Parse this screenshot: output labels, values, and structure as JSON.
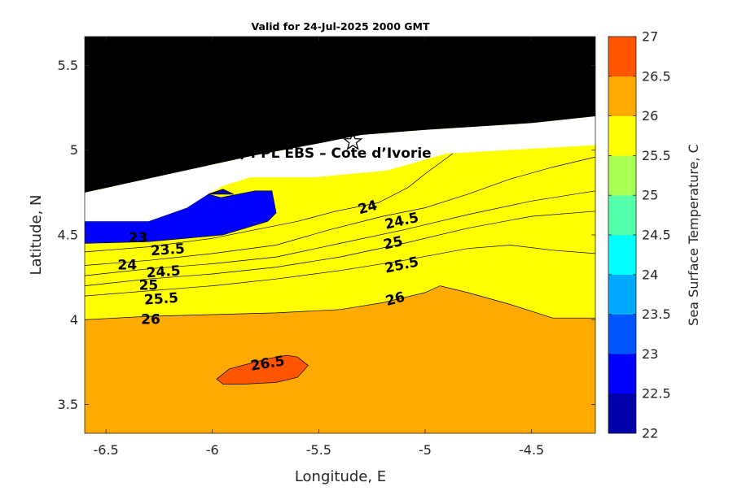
{
  "chart_data": {
    "type": "contourf",
    "title": "Valid for 24-Jul-2025 2000 GMT",
    "xlabel": "Longitude, E",
    "ylabel": "Latitude, N",
    "xlim": [
      -6.6,
      -4.2
    ],
    "ylim": [
      3.33,
      5.67
    ],
    "xticks": [
      -6.5,
      -6,
      -5.5,
      -5,
      -4.5
    ],
    "xtick_labels": [
      "-6.5",
      "-6",
      "-5.5",
      "-5",
      "-4.5"
    ],
    "yticks": [
      3.5,
      4,
      4.5,
      5,
      5.5
    ],
    "ytick_labels": [
      "3.5",
      "4",
      "4.5",
      "5",
      "5.5"
    ],
    "site_label": "A (ONHYM) PPL EBS  – Cote d’Ivorie",
    "site_marker": {
      "lon": -5.34,
      "lat": 5.05,
      "symbol": "star"
    },
    "colorbar": {
      "label": "Sea Surface Temperature, C",
      "levels": [
        22,
        22.5,
        23,
        23.5,
        24,
        24.5,
        25,
        25.5,
        26,
        26.5,
        27
      ],
      "tick_labels": [
        "22",
        "22.5",
        "23",
        "23.5",
        "24",
        "24.5",
        "25",
        "25.5",
        "26",
        "26.5",
        "27"
      ],
      "colors": [
        "#0000aa",
        "#0000ff",
        "#0055ff",
        "#00aaff",
        "#00ffff",
        "#55ffaa",
        "#aaff55",
        "#ffff00",
        "#ffaa00",
        "#ff5500"
      ]
    },
    "colors": {
      "land": "#000000",
      "nodata": "#ffffff"
    },
    "land_boundary": [
      [
        -6.6,
        4.75
      ],
      [
        -6.2,
        4.86
      ],
      [
        -5.8,
        4.97
      ],
      [
        -5.5,
        5.04
      ],
      [
        -5.3,
        5.09
      ],
      [
        -5.0,
        5.12
      ],
      [
        -4.5,
        5.16
      ],
      [
        -4.2,
        5.2
      ]
    ],
    "sea_top": [
      [
        -6.6,
        4.58
      ],
      [
        -6.3,
        4.58
      ],
      [
        -6.12,
        4.66
      ],
      [
        -6.02,
        4.74
      ],
      [
        -5.95,
        4.79
      ],
      [
        -5.82,
        4.84
      ],
      [
        -5.52,
        4.84
      ],
      [
        -5.18,
        4.88
      ],
      [
        -4.9,
        4.98
      ],
      [
        -4.2,
        5.03
      ]
    ],
    "contours": [
      {
        "level": 23.5,
        "points": [
          [
            -6.6,
            4.4
          ],
          [
            -6.3,
            4.43
          ],
          [
            -6.0,
            4.48
          ],
          [
            -5.8,
            4.53
          ],
          [
            -5.6,
            4.58
          ],
          [
            -5.42,
            4.64
          ],
          [
            -5.22,
            4.69
          ],
          [
            -5.08,
            4.78
          ],
          [
            -5.0,
            4.86
          ],
          [
            -4.87,
            4.98
          ]
        ]
      },
      {
        "level": 24,
        "points": [
          [
            -6.6,
            4.32
          ],
          [
            -6.3,
            4.35
          ],
          [
            -6.0,
            4.39
          ],
          [
            -5.7,
            4.44
          ],
          [
            -5.45,
            4.53
          ],
          [
            -5.2,
            4.61
          ],
          [
            -5.0,
            4.66
          ],
          [
            -4.8,
            4.74
          ],
          [
            -4.6,
            4.83
          ],
          [
            -4.4,
            4.9
          ],
          [
            -4.2,
            4.96
          ]
        ]
      },
      {
        "level": 24.5,
        "points": [
          [
            -6.6,
            4.26
          ],
          [
            -6.3,
            4.3
          ],
          [
            -6.0,
            4.33
          ],
          [
            -5.7,
            4.37
          ],
          [
            -5.4,
            4.45
          ],
          [
            -5.1,
            4.53
          ],
          [
            -4.8,
            4.62
          ],
          [
            -4.5,
            4.7
          ],
          [
            -4.2,
            4.76
          ]
        ]
      },
      {
        "level": 25,
        "points": [
          [
            -6.6,
            4.2
          ],
          [
            -6.3,
            4.24
          ],
          [
            -6.0,
            4.27
          ],
          [
            -5.7,
            4.31
          ],
          [
            -5.4,
            4.37
          ],
          [
            -5.1,
            4.45
          ],
          [
            -4.8,
            4.54
          ],
          [
            -4.5,
            4.61
          ],
          [
            -4.2,
            4.64
          ]
        ]
      },
      {
        "level": 25.5,
        "points": [
          [
            -6.6,
            4.14
          ],
          [
            -6.3,
            4.17
          ],
          [
            -6.0,
            4.2
          ],
          [
            -5.7,
            4.24
          ],
          [
            -5.4,
            4.29
          ],
          [
            -5.1,
            4.35
          ],
          [
            -4.8,
            4.42
          ],
          [
            -4.6,
            4.44
          ],
          [
            -4.4,
            4.41
          ],
          [
            -4.2,
            4.39
          ]
        ]
      },
      {
        "level": 26,
        "points": [
          [
            -6.6,
            4.0
          ],
          [
            -6.3,
            4.02
          ],
          [
            -6.0,
            4.03
          ],
          [
            -5.7,
            4.04
          ],
          [
            -5.4,
            4.06
          ],
          [
            -5.2,
            4.1
          ],
          [
            -5.0,
            4.16
          ],
          [
            -4.93,
            4.2
          ],
          [
            -4.8,
            4.16
          ],
          [
            -4.6,
            4.09
          ],
          [
            -4.4,
            4.01
          ],
          [
            -4.2,
            4.01
          ]
        ]
      }
    ],
    "patch_26_5": [
      [
        -5.98,
        3.65
      ],
      [
        -5.92,
        3.71
      ],
      [
        -5.86,
        3.73
      ],
      [
        -5.74,
        3.77
      ],
      [
        -5.65,
        3.79
      ],
      [
        -5.6,
        3.78
      ],
      [
        -5.55,
        3.73
      ],
      [
        -5.6,
        3.66
      ],
      [
        -5.7,
        3.63
      ],
      [
        -5.85,
        3.62
      ],
      [
        -5.95,
        3.62
      ]
    ],
    "patch_23": [
      [
        -6.6,
        4.58
      ],
      [
        -6.3,
        4.58
      ],
      [
        -6.12,
        4.66
      ],
      [
        -6.02,
        4.74
      ],
      [
        -5.96,
        4.72
      ],
      [
        -5.88,
        4.74
      ],
      [
        -5.8,
        4.76
      ],
      [
        -5.72,
        4.76
      ],
      [
        -5.7,
        4.63
      ],
      [
        -5.74,
        4.58
      ],
      [
        -5.95,
        4.5
      ],
      [
        -6.3,
        4.46
      ],
      [
        -6.6,
        4.45
      ]
    ],
    "patch_22_5": [
      [
        -6.02,
        4.74
      ],
      [
        -5.95,
        4.77
      ],
      [
        -5.9,
        4.74
      ]
    ],
    "labels": [
      {
        "text": "23",
        "lon": -6.35,
        "lat": 4.48,
        "angle": 0
      },
      {
        "text": "23.5",
        "lon": -6.21,
        "lat": 4.41,
        "angle": -4
      },
      {
        "text": "24",
        "lon": -6.4,
        "lat": 4.32,
        "angle": 0
      },
      {
        "text": "24.5",
        "lon": -6.23,
        "lat": 4.28,
        "angle": -4
      },
      {
        "text": "25",
        "lon": -6.3,
        "lat": 4.2,
        "angle": 0
      },
      {
        "text": "25.5",
        "lon": -6.24,
        "lat": 4.12,
        "angle": -4
      },
      {
        "text": "26",
        "lon": -6.29,
        "lat": 4.0,
        "angle": 0
      },
      {
        "text": "24",
        "lon": -5.27,
        "lat": 4.66,
        "angle": -15
      },
      {
        "text": "24.5",
        "lon": -5.11,
        "lat": 4.58,
        "angle": -13
      },
      {
        "text": "25",
        "lon": -5.15,
        "lat": 4.45,
        "angle": -12
      },
      {
        "text": "25.5",
        "lon": -5.11,
        "lat": 4.32,
        "angle": -12
      },
      {
        "text": "26",
        "lon": -5.14,
        "lat": 4.12,
        "angle": -15
      },
      {
        "text": "26.5",
        "lon": -5.74,
        "lat": 3.74,
        "angle": -9
      }
    ]
  }
}
